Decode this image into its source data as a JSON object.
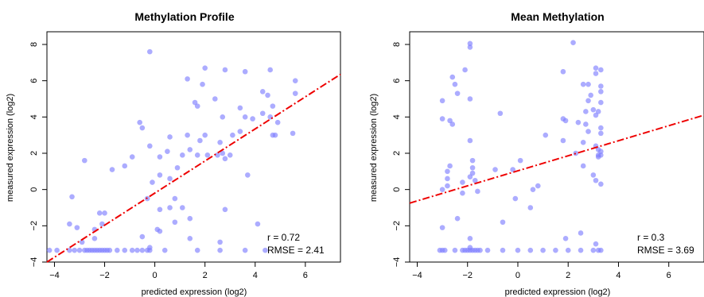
{
  "chart_data": [
    {
      "type": "scatter",
      "title": "Methylation Profile",
      "xlabel": "predicted expression (log2)",
      "ylabel": "measured expression (log2)",
      "xlim": [
        -4.3,
        7.4
      ],
      "ylim": [
        -4,
        8.7
      ],
      "xticks": [
        -4,
        -2,
        0,
        2,
        4,
        6
      ],
      "yticks": [
        -4,
        -2,
        0,
        2,
        4,
        6,
        8
      ],
      "ytick_labels": [
        "−4",
        "−2",
        "0",
        "2",
        "4",
        "6",
        "8"
      ],
      "xtick_labels": [
        "−4",
        "−2",
        "0",
        "2",
        "4",
        "6"
      ],
      "point_color": "#7f7fff",
      "fit_color": "#ee0000",
      "fit_line": {
        "x": [
          -4.3,
          7.4
        ],
        "y": [
          -4.0,
          6.35
        ]
      },
      "annotations": [
        "r = 0.72",
        "RMSE = 2.41"
      ],
      "points": [
        [
          -0.2,
          7.6
        ],
        [
          1.3,
          6.1
        ],
        [
          2.0,
          6.7
        ],
        [
          2.8,
          6.6
        ],
        [
          3.6,
          6.5
        ],
        [
          4.6,
          6.6
        ],
        [
          5.6,
          6.0
        ],
        [
          1.9,
          5.8
        ],
        [
          4.3,
          5.4
        ],
        [
          4.5,
          5.2
        ],
        [
          5.6,
          5.3
        ],
        [
          2.4,
          5.0
        ],
        [
          1.6,
          4.8
        ],
        [
          1.7,
          4.6
        ],
        [
          3.4,
          4.5
        ],
        [
          4.7,
          4.6
        ],
        [
          4.3,
          4.2
        ],
        [
          2.7,
          4.0
        ],
        [
          3.6,
          4.0
        ],
        [
          3.9,
          3.9
        ],
        [
          4.6,
          4.0
        ],
        [
          4.9,
          3.7
        ],
        [
          1.3,
          3.0
        ],
        [
          2.0,
          3.0
        ],
        [
          3.1,
          3.0
        ],
        [
          3.4,
          3.2
        ],
        [
          2.6,
          2.6
        ],
        [
          4.7,
          3.0
        ],
        [
          4.8,
          3.0
        ],
        [
          5.5,
          3.1
        ],
        [
          -0.6,
          3.7
        ],
        [
          -0.5,
          3.4
        ],
        [
          0.6,
          2.9
        ],
        [
          1.8,
          2.7
        ],
        [
          2.1,
          1.9
        ],
        [
          1.7,
          1.9
        ],
        [
          2.5,
          1.9
        ],
        [
          2.7,
          2.0
        ],
        [
          3.0,
          1.9
        ],
        [
          2.8,
          1.7
        ],
        [
          -0.2,
          2.4
        ],
        [
          1.4,
          2.2
        ],
        [
          -2.8,
          1.6
        ],
        [
          -1.7,
          1.1
        ],
        [
          -1.2,
          1.3
        ],
        [
          -0.9,
          1.8
        ],
        [
          0.2,
          1.8
        ],
        [
          0.5,
          2.1
        ],
        [
          0.9,
          1.2
        ],
        [
          1.1,
          1.9
        ],
        [
          0.2,
          0.8
        ],
        [
          0.6,
          0.6
        ],
        [
          -0.1,
          0.4
        ],
        [
          3.7,
          0.8
        ],
        [
          -3.3,
          -0.4
        ],
        [
          -0.3,
          -0.5
        ],
        [
          0.8,
          -0.5
        ],
        [
          0.2,
          -1.1
        ],
        [
          0.6,
          -1.0
        ],
        [
          1.1,
          -1.0
        ],
        [
          1.4,
          -1.6
        ],
        [
          0.8,
          -1.8
        ],
        [
          -2.2,
          -1.3
        ],
        [
          -2.0,
          -1.3
        ],
        [
          -2.1,
          -1.9
        ],
        [
          -2.4,
          -2.2
        ],
        [
          -3.4,
          -1.9
        ],
        [
          -3.1,
          -2.1
        ],
        [
          -2.9,
          -2.9
        ],
        [
          -2.4,
          -2.7
        ],
        [
          -0.5,
          -2.6
        ],
        [
          0.1,
          -2.2
        ],
        [
          0.2,
          -2.3
        ],
        [
          1.4,
          -2.7
        ],
        [
          2.6,
          -2.9
        ],
        [
          2.8,
          -1.1
        ],
        [
          4.1,
          -1.9
        ],
        [
          -3.4,
          -3.35
        ],
        [
          -3.2,
          -3.35
        ],
        [
          -3.0,
          -3.35
        ],
        [
          -2.8,
          -3.35
        ],
        [
          -2.7,
          -3.35
        ],
        [
          -2.6,
          -3.35
        ],
        [
          -2.5,
          -3.35
        ],
        [
          -2.4,
          -3.35
        ],
        [
          -2.3,
          -3.35
        ],
        [
          -2.2,
          -3.35
        ],
        [
          -2.1,
          -3.35
        ],
        [
          -2.0,
          -3.35
        ],
        [
          -1.9,
          -3.35
        ],
        [
          -1.8,
          -3.35
        ],
        [
          -1.5,
          -3.35
        ],
        [
          -1.2,
          -3.35
        ],
        [
          -0.9,
          -3.35
        ],
        [
          -0.7,
          -3.35
        ],
        [
          -0.5,
          -3.35
        ],
        [
          -0.3,
          -3.35
        ],
        [
          -0.2,
          -3.35
        ],
        [
          -0.2,
          -3.2
        ],
        [
          0.4,
          -3.35
        ],
        [
          1.7,
          -3.35
        ],
        [
          2.6,
          -3.35
        ],
        [
          3.6,
          -3.35
        ],
        [
          4.4,
          -3.35
        ],
        [
          -4.2,
          -3.35
        ],
        [
          -3.9,
          -3.35
        ]
      ]
    },
    {
      "type": "scatter",
      "title": "Mean Methylation",
      "xlabel": "predicted expression (log2)",
      "ylabel": "measured expression (log2)",
      "xlim": [
        -4.3,
        7.4
      ],
      "ylim": [
        -4,
        8.7
      ],
      "xticks": [
        -4,
        -2,
        0,
        2,
        4,
        6
      ],
      "yticks": [
        -4,
        -2,
        0,
        2,
        4,
        6,
        8
      ],
      "ytick_labels": [
        "−4",
        "−2",
        "0",
        "2",
        "4",
        "6",
        "8"
      ],
      "xtick_labels": [
        "−4",
        "−2",
        "0",
        "2",
        "4",
        "6"
      ],
      "point_color": "#7f7fff",
      "fit_color": "#ee0000",
      "fit_line": {
        "x": [
          -4.3,
          7.4
        ],
        "y": [
          -0.75,
          4.1
        ]
      },
      "annotations": [
        "r = 0.3",
        "RMSE = 3.69"
      ],
      "points": [
        [
          -1.9,
          8.05
        ],
        [
          -1.9,
          7.85
        ],
        [
          2.2,
          8.1
        ],
        [
          -2.1,
          6.6
        ],
        [
          -2.6,
          6.2
        ],
        [
          -2.5,
          5.8
        ],
        [
          -2.4,
          5.3
        ],
        [
          -3.0,
          4.9
        ],
        [
          -1.9,
          5.0
        ],
        [
          3.1,
          6.7
        ],
        [
          3.1,
          6.4
        ],
        [
          3.3,
          6.6
        ],
        [
          1.8,
          6.5
        ],
        [
          2.6,
          5.8
        ],
        [
          2.8,
          5.8
        ],
        [
          3.3,
          5.7
        ],
        [
          3.3,
          5.4
        ],
        [
          2.9,
          5.2
        ],
        [
          2.8,
          4.9
        ],
        [
          3.3,
          4.8
        ],
        [
          2.7,
          4.3
        ],
        [
          3.0,
          4.4
        ],
        [
          3.1,
          4.1
        ],
        [
          3.2,
          4.3
        ],
        [
          -3.0,
          3.9
        ],
        [
          -2.7,
          3.8
        ],
        [
          -2.6,
          3.6
        ],
        [
          -0.7,
          4.2
        ],
        [
          1.8,
          3.9
        ],
        [
          1.9,
          3.8
        ],
        [
          2.4,
          3.7
        ],
        [
          2.7,
          3.6
        ],
        [
          3.3,
          3.4
        ],
        [
          2.8,
          3.2
        ],
        [
          3.3,
          3.1
        ],
        [
          1.1,
          3.0
        ],
        [
          2.6,
          2.6
        ],
        [
          3.1,
          2.4
        ],
        [
          3.2,
          2.2
        ],
        [
          3.3,
          2.1
        ],
        [
          3.2,
          1.9
        ],
        [
          3.3,
          1.9
        ],
        [
          3.2,
          1.8
        ],
        [
          2.3,
          2.0
        ],
        [
          1.8,
          2.7
        ],
        [
          -1.9,
          2.7
        ],
        [
          -1.8,
          1.6
        ],
        [
          -1.8,
          1.2
        ],
        [
          -1.8,
          0.9
        ],
        [
          -2.7,
          1.3
        ],
        [
          -2.8,
          1.0
        ],
        [
          -2.8,
          0.6
        ],
        [
          -0.9,
          1.1
        ],
        [
          -0.2,
          1.1
        ],
        [
          0.1,
          1.6
        ],
        [
          2.6,
          1.3
        ],
        [
          3.0,
          0.8
        ],
        [
          3.1,
          0.5
        ],
        [
          3.3,
          0.3
        ],
        [
          -1.9,
          0.7
        ],
        [
          -1.7,
          0.5
        ],
        [
          -2.2,
          0.4
        ],
        [
          -2.8,
          0.2
        ],
        [
          -3.0,
          0.0
        ],
        [
          -2.2,
          -0.2
        ],
        [
          -1.6,
          -0.1
        ],
        [
          -0.1,
          -0.5
        ],
        [
          0.6,
          0.0
        ],
        [
          0.8,
          0.2
        ],
        [
          0.5,
          -1.0
        ],
        [
          -0.6,
          -1.8
        ],
        [
          -2.4,
          -1.6
        ],
        [
          -3.0,
          -2.1
        ],
        [
          -1.9,
          -2.7
        ],
        [
          1.9,
          -2.7
        ],
        [
          2.5,
          -2.4
        ],
        [
          -3.1,
          -3.35
        ],
        [
          -3.0,
          -3.35
        ],
        [
          -2.9,
          -3.35
        ],
        [
          -2.5,
          -3.35
        ],
        [
          -2.2,
          -3.35
        ],
        [
          -2.1,
          -3.35
        ],
        [
          -2.0,
          -3.35
        ],
        [
          -1.9,
          -3.35
        ],
        [
          -1.8,
          -3.35
        ],
        [
          -1.7,
          -3.35
        ],
        [
          -1.6,
          -3.35
        ],
        [
          -1.5,
          -3.35
        ],
        [
          -1.2,
          -3.35
        ],
        [
          -0.6,
          -3.35
        ],
        [
          0.0,
          -3.35
        ],
        [
          0.5,
          -3.35
        ],
        [
          1.0,
          -3.35
        ],
        [
          1.5,
          -3.35
        ],
        [
          2.0,
          -3.35
        ],
        [
          2.5,
          -3.35
        ],
        [
          3.0,
          -3.35
        ],
        [
          3.2,
          -3.35
        ],
        [
          3.3,
          -3.35
        ],
        [
          3.1,
          -3.0
        ],
        [
          -1.9,
          -3.2
        ]
      ]
    }
  ]
}
